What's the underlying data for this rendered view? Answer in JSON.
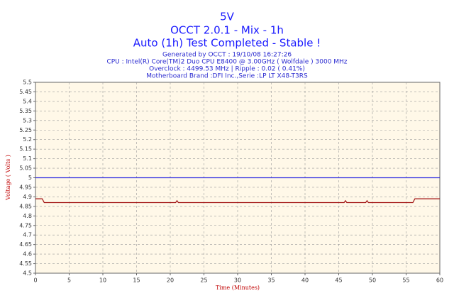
{
  "chart_data": {
    "type": "line",
    "title": "5V",
    "subtitle": [
      "OCCT 2.0.1 - Mix - 1h",
      "Auto (1h) Test Completed - Stable !"
    ],
    "info": [
      "Generated by OCCT : 19/10/08 16:27:26",
      "CPU : Intel(R) Core(TM)2 Duo CPU E8400 @ 3.00GHz ( Wolfdale ) 3000 MHz",
      "Overclock : 4499.53 MHz | Ripple : 0.02 ( 0.41%)",
      "Motherboard Brand :DFI Inc.,Serie :LP LT X48-T3RS"
    ],
    "x_label": "Time (Minutes)",
    "y_label": "Voltage ( Volts )",
    "xlim": [
      0,
      60
    ],
    "xticks": [
      0,
      5,
      10,
      15,
      20,
      25,
      30,
      35,
      40,
      45,
      50,
      55,
      60
    ],
    "ylim": [
      4.5,
      5.5
    ],
    "yticks": [
      4.5,
      4.55,
      4.6,
      4.65,
      4.7,
      4.75,
      4.8,
      4.85,
      4.9,
      4.95,
      5,
      5.05,
      5.1,
      5.15,
      5.2,
      5.25,
      5.3,
      5.35,
      5.4,
      5.45,
      5.5
    ],
    "grid": true,
    "series": [
      {
        "color": "#2828e0",
        "x": [
          0,
          60
        ],
        "values": [
          5,
          5
        ]
      },
      {
        "color": "#a01010",
        "x": [
          0,
          1,
          1.3,
          20.8,
          21,
          21.2,
          45.8,
          46,
          46.2,
          49,
          49.2,
          49.4,
          56,
          56.3,
          60
        ],
        "values": [
          4.89,
          4.89,
          4.87,
          4.87,
          4.88,
          4.87,
          4.87,
          4.88,
          4.87,
          4.87,
          4.88,
          4.87,
          4.87,
          4.89,
          4.89
        ]
      }
    ]
  }
}
